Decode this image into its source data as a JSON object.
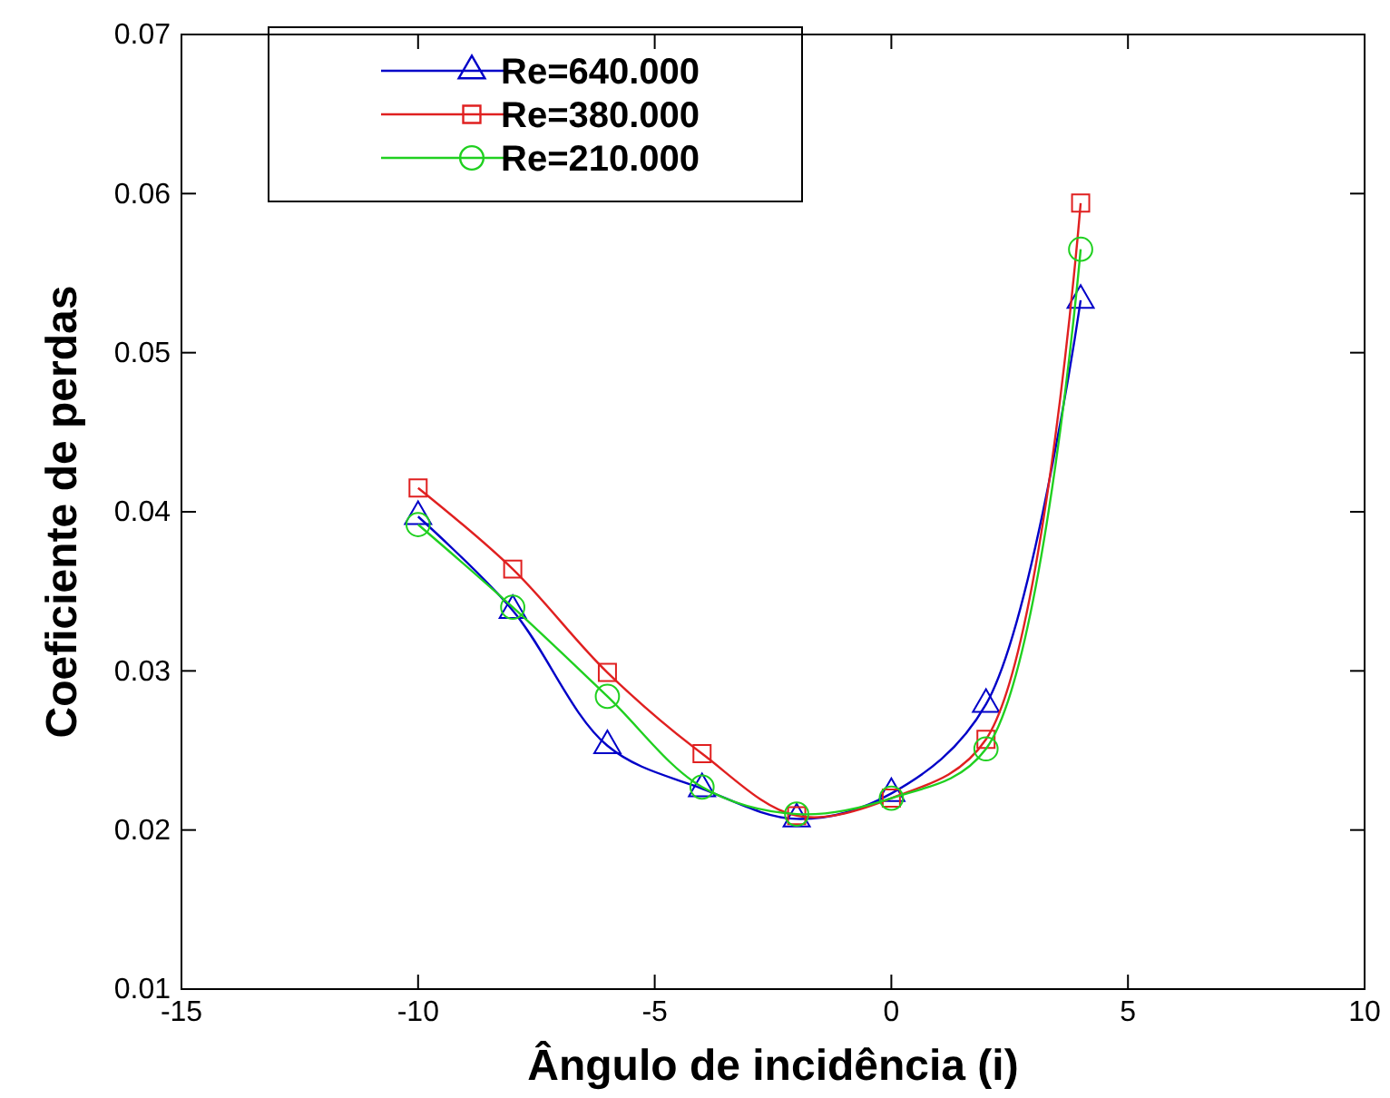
{
  "chart_data": {
    "type": "line",
    "xlabel": "Ângulo de incidência (i)",
    "ylabel": "Coeficiente de perdas",
    "x": [
      -10,
      -8,
      -6,
      -4,
      -2,
      0,
      2,
      4
    ],
    "series": [
      {
        "name": "Re=640.000",
        "color": "#0000c8",
        "marker": "triangle",
        "values": [
          0.0397,
          0.0338,
          0.0253,
          0.0226,
          0.0207,
          0.0223,
          0.0279,
          0.0533
        ]
      },
      {
        "name": "Re=380.000",
        "color": "#e02020",
        "marker": "square",
        "values": [
          0.0415,
          0.0364,
          0.0299,
          0.0248,
          0.0209,
          0.022,
          0.0257,
          0.0594
        ]
      },
      {
        "name": "Re=210.000",
        "color": "#20d020",
        "marker": "circle",
        "values": [
          0.0392,
          0.034,
          0.0284,
          0.0227,
          0.021,
          0.022,
          0.0251,
          0.0565
        ]
      }
    ],
    "xlim": [
      -15,
      10
    ],
    "xticks": [
      -15,
      -10,
      -5,
      0,
      5,
      10
    ],
    "ylim": [
      0.01,
      0.07
    ],
    "yticks": [
      0.01,
      0.02,
      0.03,
      0.04,
      0.05,
      0.06,
      0.07
    ],
    "grid": false,
    "legend": "top left",
    "line_style": "solid"
  }
}
